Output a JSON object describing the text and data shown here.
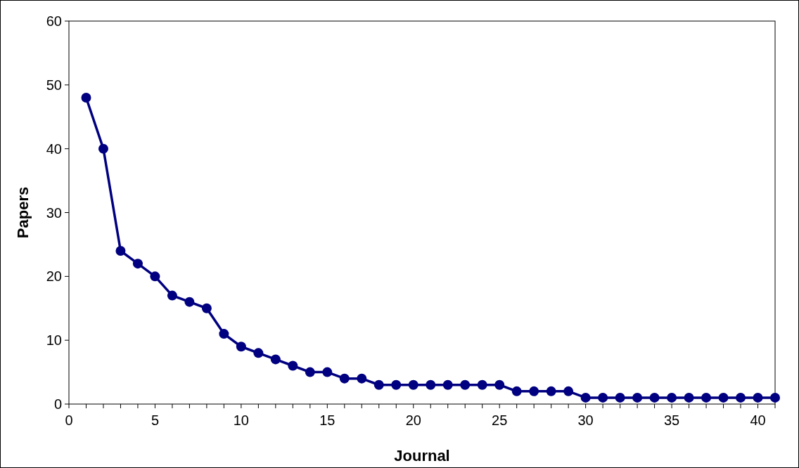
{
  "chart_data": {
    "type": "line",
    "xlabel": "Journal",
    "ylabel": "Papers",
    "x": [
      1,
      2,
      3,
      4,
      5,
      6,
      7,
      8,
      9,
      10,
      11,
      12,
      13,
      14,
      15,
      16,
      17,
      18,
      19,
      20,
      21,
      22,
      23,
      24,
      25,
      26,
      27,
      28,
      29,
      30,
      31,
      32,
      33,
      34,
      35,
      36,
      37,
      38,
      39,
      40,
      41
    ],
    "series": [
      {
        "color": "#000080",
        "values": [
          48,
          40,
          24,
          22,
          20,
          17,
          16,
          15,
          11,
          9,
          8,
          7,
          6,
          5,
          5,
          4,
          4,
          3,
          3,
          3,
          3,
          3,
          3,
          3,
          3,
          2,
          2,
          2,
          2,
          1,
          1,
          1,
          1,
          1,
          1,
          1,
          1,
          1,
          1,
          1,
          1
        ]
      }
    ],
    "xlim": [
      0,
      41
    ],
    "xticks": [
      0,
      {
        "value": 1,
        "label": null
      },
      {
        "value": 2,
        "label": null
      },
      {
        "value": 3,
        "label": null
      },
      {
        "value": 4,
        "label": null
      },
      5,
      {
        "value": 6,
        "label": null
      },
      {
        "value": 7,
        "label": null
      },
      {
        "value": 8,
        "label": null
      },
      {
        "value": 9,
        "label": null
      },
      10,
      {
        "value": 11,
        "label": null
      },
      {
        "value": 12,
        "label": null
      },
      {
        "value": 13,
        "label": null
      },
      {
        "value": 14,
        "label": null
      },
      15,
      {
        "value": 16,
        "label": null
      },
      {
        "value": 17,
        "label": null
      },
      {
        "value": 18,
        "label": null
      },
      {
        "value": 19,
        "label": null
      },
      20,
      {
        "value": 21,
        "label": null
      },
      {
        "value": 22,
        "label": null
      },
      {
        "value": 23,
        "label": null
      },
      {
        "value": 24,
        "label": null
      },
      25,
      {
        "value": 26,
        "label": null
      },
      {
        "value": 27,
        "label": null
      },
      {
        "value": 28,
        "label": null
      },
      {
        "value": 29,
        "label": null
      },
      30,
      {
        "value": 31,
        "label": null
      },
      {
        "value": 32,
        "label": null
      },
      {
        "value": 33,
        "label": null
      },
      {
        "value": 34,
        "label": null
      },
      35,
      {
        "value": 36,
        "label": null
      },
      {
        "value": 37,
        "label": null
      },
      {
        "value": 38,
        "label": null
      },
      {
        "value": 39,
        "label": null
      },
      40,
      {
        "value": 41,
        "label": null
      }
    ],
    "ylim": [
      0,
      60
    ],
    "yticks": [
      0,
      10,
      20,
      30,
      40,
      50,
      60
    ],
    "marker": "circle",
    "line_style": "solid"
  }
}
